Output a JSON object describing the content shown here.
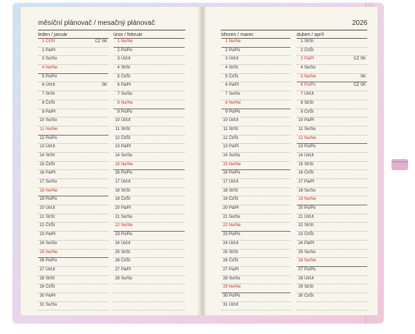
{
  "title": "měsíční plánovač / mesačný plánovač",
  "year": "2026",
  "months": [
    {
      "label": "leden / január",
      "days": [
        {
          "d": "1",
          "n": "Čt/Št",
          "h": "CZ SK",
          "red": true
        },
        {
          "d": "2",
          "n": "Pá/Pi"
        },
        {
          "d": "3",
          "n": "So/So"
        },
        {
          "d": "4",
          "n": "Ne/Ne",
          "red": true,
          "wk": true
        },
        {
          "d": "5",
          "n": "Po/Po"
        },
        {
          "d": "6",
          "n": "Út/Ut",
          "h": "SK"
        },
        {
          "d": "7",
          "n": "St/St"
        },
        {
          "d": "8",
          "n": "Čt/Št"
        },
        {
          "d": "9",
          "n": "Pá/Pi"
        },
        {
          "d": "10",
          "n": "So/So"
        },
        {
          "d": "11",
          "n": "Ne/Ne",
          "red": true,
          "wk": true
        },
        {
          "d": "12",
          "n": "Po/Po"
        },
        {
          "d": "13",
          "n": "Út/Ut"
        },
        {
          "d": "14",
          "n": "St/St"
        },
        {
          "d": "15",
          "n": "Čt/Št"
        },
        {
          "d": "16",
          "n": "Pá/Pi"
        },
        {
          "d": "17",
          "n": "So/So"
        },
        {
          "d": "18",
          "n": "Ne/Ne",
          "red": true,
          "wk": true
        },
        {
          "d": "19",
          "n": "Po/Po"
        },
        {
          "d": "20",
          "n": "Út/Ut"
        },
        {
          "d": "21",
          "n": "St/St"
        },
        {
          "d": "22",
          "n": "Čt/Št"
        },
        {
          "d": "23",
          "n": "Pá/Pi"
        },
        {
          "d": "24",
          "n": "So/So"
        },
        {
          "d": "25",
          "n": "Ne/Ne",
          "red": true,
          "wk": true
        },
        {
          "d": "26",
          "n": "Po/Po"
        },
        {
          "d": "27",
          "n": "Út/Ut"
        },
        {
          "d": "28",
          "n": "St/St"
        },
        {
          "d": "29",
          "n": "Čt/Št"
        },
        {
          "d": "30",
          "n": "Pá/Pi"
        },
        {
          "d": "31",
          "n": "So/So"
        }
      ]
    },
    {
      "label": "únor / február",
      "days": [
        {
          "d": "1",
          "n": "Ne/Ne",
          "red": true,
          "wk": true
        },
        {
          "d": "2",
          "n": "Po/Po"
        },
        {
          "d": "3",
          "n": "Út/Ut"
        },
        {
          "d": "4",
          "n": "St/St"
        },
        {
          "d": "5",
          "n": "Čt/Št"
        },
        {
          "d": "6",
          "n": "Pá/Pi"
        },
        {
          "d": "7",
          "n": "So/So"
        },
        {
          "d": "8",
          "n": "Ne/Ne",
          "red": true,
          "wk": true
        },
        {
          "d": "9",
          "n": "Po/Po"
        },
        {
          "d": "10",
          "n": "Út/Ut"
        },
        {
          "d": "11",
          "n": "St/St"
        },
        {
          "d": "12",
          "n": "Čt/Št"
        },
        {
          "d": "13",
          "n": "Pá/Pi"
        },
        {
          "d": "14",
          "n": "So/So"
        },
        {
          "d": "15",
          "n": "Ne/Ne",
          "red": true,
          "wk": true
        },
        {
          "d": "16",
          "n": "Po/Po"
        },
        {
          "d": "17",
          "n": "Út/Ut"
        },
        {
          "d": "18",
          "n": "St/St"
        },
        {
          "d": "19",
          "n": "Čt/Št"
        },
        {
          "d": "20",
          "n": "Pá/Pi"
        },
        {
          "d": "21",
          "n": "So/So"
        },
        {
          "d": "22",
          "n": "Ne/Ne",
          "red": true,
          "wk": true
        },
        {
          "d": "23",
          "n": "Po/Po"
        },
        {
          "d": "24",
          "n": "Út/Ut"
        },
        {
          "d": "25",
          "n": "St/St"
        },
        {
          "d": "26",
          "n": "Čt/Št"
        },
        {
          "d": "27",
          "n": "Pá/Pi"
        },
        {
          "d": "28",
          "n": "So/So"
        }
      ]
    },
    {
      "label": "březen / marec",
      "days": [
        {
          "d": "1",
          "n": "Ne/Ne",
          "red": true,
          "wk": true
        },
        {
          "d": "2",
          "n": "Po/Po"
        },
        {
          "d": "3",
          "n": "Út/Ut"
        },
        {
          "d": "4",
          "n": "St/St"
        },
        {
          "d": "5",
          "n": "Čt/Št"
        },
        {
          "d": "6",
          "n": "Pá/Pi"
        },
        {
          "d": "7",
          "n": "So/So"
        },
        {
          "d": "8",
          "n": "Ne/Ne",
          "red": true,
          "wk": true
        },
        {
          "d": "9",
          "n": "Po/Po"
        },
        {
          "d": "10",
          "n": "Út/Ut"
        },
        {
          "d": "11",
          "n": "St/St"
        },
        {
          "d": "12",
          "n": "Čt/Št"
        },
        {
          "d": "13",
          "n": "Pá/Pi"
        },
        {
          "d": "14",
          "n": "So/So"
        },
        {
          "d": "15",
          "n": "Ne/Ne",
          "red": true,
          "wk": true
        },
        {
          "d": "16",
          "n": "Po/Po"
        },
        {
          "d": "17",
          "n": "Út/Ut"
        },
        {
          "d": "18",
          "n": "St/St"
        },
        {
          "d": "19",
          "n": "Čt/Št"
        },
        {
          "d": "20",
          "n": "Pá/Pi"
        },
        {
          "d": "21",
          "n": "So/So"
        },
        {
          "d": "22",
          "n": "Ne/Ne",
          "red": true,
          "wk": true
        },
        {
          "d": "23",
          "n": "Po/Po"
        },
        {
          "d": "24",
          "n": "Út/Ut"
        },
        {
          "d": "25",
          "n": "St/St"
        },
        {
          "d": "26",
          "n": "Čt/Št"
        },
        {
          "d": "27",
          "n": "Pá/Pi"
        },
        {
          "d": "28",
          "n": "So/So"
        },
        {
          "d": "29",
          "n": "Ne/Ne",
          "red": true,
          "wk": true
        },
        {
          "d": "30",
          "n": "Po/Po"
        },
        {
          "d": "31",
          "n": "Út/Ut"
        }
      ]
    },
    {
      "label": "duben / apríl",
      "days": [
        {
          "d": "1",
          "n": "St/St"
        },
        {
          "d": "2",
          "n": "Čt/Št"
        },
        {
          "d": "3",
          "n": "Pá/Pi",
          "h": "CZ SK",
          "red": true
        },
        {
          "d": "4",
          "n": "So/So"
        },
        {
          "d": "5",
          "n": "Ne/Ne",
          "h": "SK",
          "red": true,
          "wk": true
        },
        {
          "d": "6",
          "n": "Po/Po",
          "h": "CZ SK",
          "red": true
        },
        {
          "d": "7",
          "n": "Út/Ut"
        },
        {
          "d": "8",
          "n": "St/St"
        },
        {
          "d": "9",
          "n": "Čt/Št"
        },
        {
          "d": "10",
          "n": "Pá/Pi"
        },
        {
          "d": "11",
          "n": "So/So"
        },
        {
          "d": "12",
          "n": "Ne/Ne",
          "red": true,
          "wk": true
        },
        {
          "d": "13",
          "n": "Po/Po"
        },
        {
          "d": "14",
          "n": "Út/Ut"
        },
        {
          "d": "15",
          "n": "St/St"
        },
        {
          "d": "16",
          "n": "Čt/Št"
        },
        {
          "d": "17",
          "n": "Pá/Pi"
        },
        {
          "d": "18",
          "n": "So/So"
        },
        {
          "d": "19",
          "n": "Ne/Ne",
          "red": true,
          "wk": true
        },
        {
          "d": "20",
          "n": "Po/Po"
        },
        {
          "d": "21",
          "n": "Út/Ut"
        },
        {
          "d": "22",
          "n": "St/St"
        },
        {
          "d": "23",
          "n": "Čt/Št"
        },
        {
          "d": "24",
          "n": "Pá/Pi"
        },
        {
          "d": "25",
          "n": "So/So"
        },
        {
          "d": "26",
          "n": "Ne/Ne",
          "red": true,
          "wk": true
        },
        {
          "d": "27",
          "n": "Po/Po"
        },
        {
          "d": "28",
          "n": "Út/Ut"
        },
        {
          "d": "29",
          "n": "St/St"
        },
        {
          "d": "30",
          "n": "Čt/Št"
        }
      ]
    }
  ]
}
